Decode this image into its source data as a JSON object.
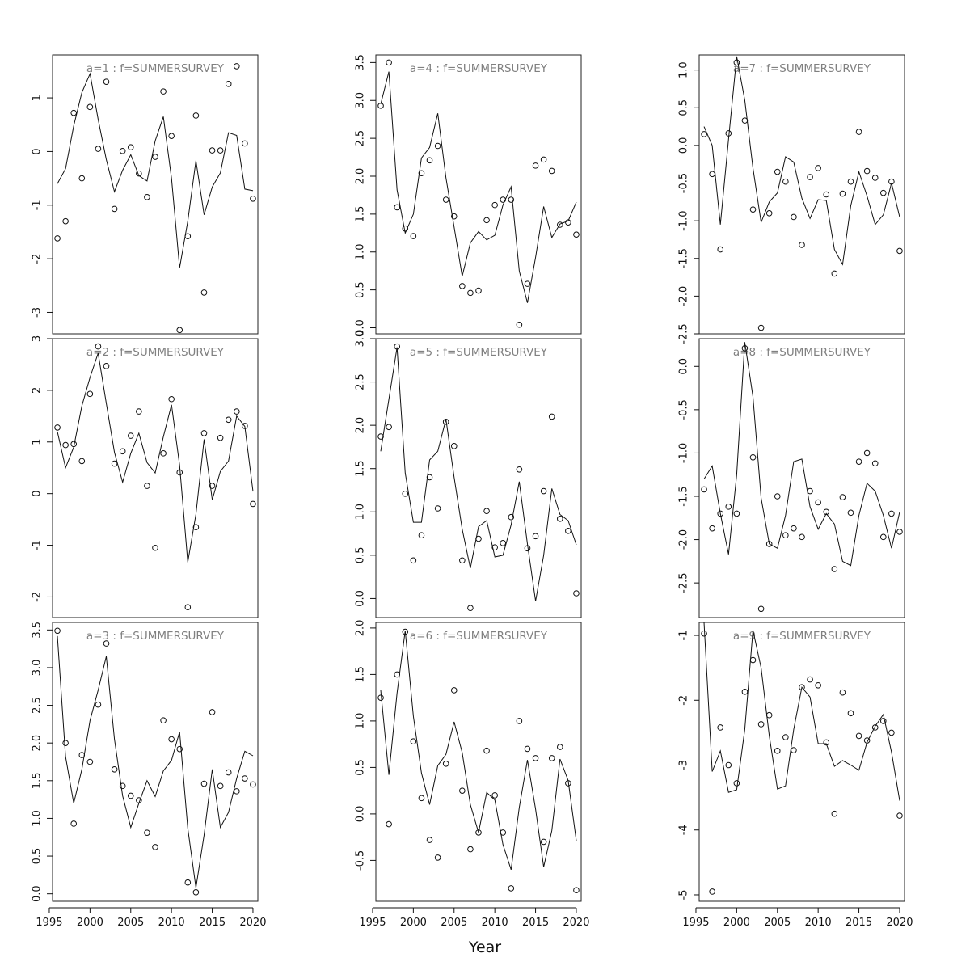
{
  "figure": {
    "xlabel": "Year"
  },
  "chart_data": [
    {
      "type": "line",
      "title": "a=1  :  f=SUMMERSURVEY",
      "xlim": [
        1996,
        2020
      ],
      "ylim": [
        -3.4,
        1.8
      ],
      "x_ticks": [
        1995,
        2000,
        2005,
        2010,
        2015,
        2020
      ],
      "y_ticks": [
        -3,
        -2,
        -1,
        0,
        1
      ],
      "years": [
        1996,
        1997,
        1998,
        1999,
        2000,
        2001,
        2002,
        2003,
        2004,
        2005,
        2006,
        2007,
        2008,
        2009,
        2010,
        2011,
        2012,
        2013,
        2014,
        2015,
        2016,
        2017,
        2018,
        2019,
        2020
      ],
      "series": [
        {
          "kind": "fitted",
          "values": [
            -0.6,
            -0.32,
            0.48,
            1.1,
            1.45,
            0.6,
            -0.15,
            -0.75,
            -0.35,
            -0.06,
            -0.45,
            -0.55,
            0.2,
            0.65,
            -0.5,
            -2.17,
            -1.3,
            -0.17,
            -1.18,
            -0.66,
            -0.4,
            0.35,
            0.3,
            -0.7,
            -0.73
          ]
        },
        {
          "kind": "observed",
          "values": [
            -1.62,
            -1.3,
            0.72,
            -0.5,
            0.83,
            0.05,
            1.3,
            -1.07,
            0.01,
            0.08,
            -0.41,
            -0.85,
            -0.1,
            1.12,
            0.29,
            -3.33,
            -1.58,
            0.67,
            -2.63,
            0.02,
            0.02,
            1.26,
            1.59,
            0.15,
            -0.88
          ]
        }
      ]
    },
    {
      "type": "line",
      "title": "a=2  :  f=SUMMERSURVEY",
      "xlim": [
        1996,
        2020
      ],
      "ylim": [
        -2.4,
        3.0
      ],
      "x_ticks": [
        1995,
        2000,
        2005,
        2010,
        2015,
        2020
      ],
      "y_ticks": [
        -2,
        -1,
        0,
        1,
        2,
        3
      ],
      "years": [
        1996,
        1997,
        1998,
        1999,
        2000,
        2001,
        2002,
        2003,
        2004,
        2005,
        2006,
        2007,
        2008,
        2009,
        2010,
        2011,
        2012,
        2013,
        2014,
        2015,
        2016,
        2017,
        2018,
        2019,
        2020
      ],
      "series": [
        {
          "kind": "fitted",
          "values": [
            1.2,
            0.5,
            0.9,
            1.7,
            2.25,
            2.72,
            1.75,
            0.8,
            0.22,
            0.78,
            1.17,
            0.6,
            0.4,
            1.1,
            1.72,
            0.55,
            -1.33,
            -0.4,
            1.05,
            -0.12,
            0.43,
            0.63,
            1.5,
            1.3,
            0.04
          ]
        },
        {
          "kind": "observed",
          "values": [
            1.28,
            0.94,
            0.96,
            0.63,
            1.93,
            2.85,
            2.47,
            0.58,
            0.82,
            1.12,
            1.59,
            0.15,
            -1.05,
            0.78,
            1.83,
            0.41,
            -2.2,
            -0.65,
            1.17,
            0.15,
            1.08,
            1.43,
            1.59,
            1.31,
            -0.2
          ]
        }
      ]
    },
    {
      "type": "line",
      "title": "a=3  :  f=SUMMERSURVEY",
      "xlim": [
        1996,
        2020
      ],
      "ylim": [
        -0.1,
        3.6
      ],
      "x_ticks": [
        1995,
        2000,
        2005,
        2010,
        2015,
        2020
      ],
      "y_ticks": [
        0.0,
        0.5,
        1.0,
        1.5,
        2.0,
        2.5,
        3.0,
        3.5
      ],
      "years": [
        1996,
        1997,
        1998,
        1999,
        2000,
        2001,
        2002,
        2003,
        2004,
        2005,
        2006,
        2007,
        2008,
        2009,
        2010,
        2011,
        2012,
        2013,
        2014,
        2015,
        2016,
        2017,
        2018,
        2019,
        2020
      ],
      "series": [
        {
          "kind": "fitted",
          "values": [
            3.42,
            1.82,
            1.2,
            1.65,
            2.3,
            2.7,
            3.15,
            2.05,
            1.3,
            0.88,
            1.2,
            1.5,
            1.29,
            1.63,
            1.77,
            2.15,
            0.87,
            0.08,
            0.78,
            1.65,
            0.88,
            1.08,
            1.53,
            1.89,
            1.83
          ]
        },
        {
          "kind": "observed",
          "values": [
            3.49,
            2.0,
            0.93,
            1.84,
            1.75,
            2.51,
            3.32,
            1.65,
            1.43,
            1.3,
            1.24,
            0.81,
            0.62,
            2.3,
            2.05,
            1.92,
            0.15,
            0.02,
            1.46,
            2.41,
            1.43,
            1.61,
            1.36,
            1.53,
            1.45
          ]
        }
      ]
    },
    {
      "type": "line",
      "title": "a=4  :  f=SUMMERSURVEY",
      "xlim": [
        1996,
        2020
      ],
      "ylim": [
        -0.08,
        3.6
      ],
      "x_ticks": [
        1995,
        2000,
        2005,
        2010,
        2015,
        2020
      ],
      "y_ticks": [
        0.0,
        0.5,
        1.0,
        1.5,
        2.0,
        2.5,
        3.0,
        3.5
      ],
      "years": [
        1996,
        1997,
        1998,
        1999,
        2000,
        2001,
        2002,
        2003,
        2004,
        2005,
        2006,
        2007,
        2008,
        2009,
        2010,
        2011,
        2012,
        2013,
        2014,
        2015,
        2016,
        2017,
        2018,
        2019,
        2020
      ],
      "series": [
        {
          "kind": "fitted",
          "values": [
            2.95,
            3.38,
            1.82,
            1.25,
            1.5,
            2.24,
            2.38,
            2.83,
            1.98,
            1.33,
            0.68,
            1.12,
            1.27,
            1.16,
            1.22,
            1.62,
            1.86,
            0.75,
            0.33,
            0.93,
            1.6,
            1.19,
            1.37,
            1.41,
            1.66
          ]
        },
        {
          "kind": "observed",
          "values": [
            2.93,
            3.5,
            1.59,
            1.31,
            1.21,
            2.04,
            2.21,
            2.4,
            1.69,
            1.47,
            0.55,
            0.46,
            0.49,
            1.42,
            1.62,
            1.69,
            1.69,
            0.04,
            0.58,
            2.14,
            2.22,
            2.07,
            1.36,
            1.39,
            1.23
          ]
        }
      ]
    },
    {
      "type": "line",
      "title": "a=5  :  f=SUMMERSURVEY",
      "xlim": [
        1996,
        2020
      ],
      "ylim": [
        -0.22,
        3.0
      ],
      "x_ticks": [
        1995,
        2000,
        2005,
        2010,
        2015,
        2020
      ],
      "y_ticks": [
        0.0,
        0.5,
        1.0,
        1.5,
        2.0,
        2.5,
        3.0
      ],
      "years": [
        1996,
        1997,
        1998,
        1999,
        2000,
        2001,
        2002,
        2003,
        2004,
        2005,
        2006,
        2007,
        2008,
        2009,
        2010,
        2011,
        2012,
        2013,
        2014,
        2015,
        2016,
        2017,
        2018,
        2019,
        2020
      ],
      "series": [
        {
          "kind": "fitted",
          "values": [
            1.7,
            2.3,
            2.9,
            1.45,
            0.88,
            0.88,
            1.6,
            1.7,
            2.07,
            1.4,
            0.8,
            0.35,
            0.83,
            0.9,
            0.48,
            0.5,
            0.85,
            1.35,
            0.63,
            -0.03,
            0.5,
            1.27,
            0.97,
            0.9,
            0.62
          ]
        },
        {
          "kind": "observed",
          "values": [
            1.87,
            1.98,
            2.91,
            1.21,
            0.44,
            0.73,
            1.4,
            1.04,
            2.04,
            1.76,
            0.44,
            -0.11,
            0.69,
            1.01,
            0.59,
            0.64,
            0.94,
            1.49,
            0.58,
            0.72,
            1.24,
            2.1,
            0.92,
            0.78,
            0.06
          ]
        }
      ]
    },
    {
      "type": "line",
      "title": "a=6  :  f=SUMMERSURVEY",
      "xlim": [
        1996,
        2020
      ],
      "ylim": [
        -0.94,
        2.06
      ],
      "x_ticks": [
        1995,
        2000,
        2005,
        2010,
        2015,
        2020
      ],
      "y_ticks": [
        -0.5,
        0.0,
        0.5,
        1.0,
        1.5,
        2.0
      ],
      "years": [
        1996,
        1997,
        1998,
        1999,
        2000,
        2001,
        2002,
        2003,
        2004,
        2005,
        2006,
        2007,
        2008,
        2009,
        2010,
        2011,
        2012,
        2013,
        2014,
        2015,
        2016,
        2017,
        2018,
        2019,
        2020
      ],
      "series": [
        {
          "kind": "fitted",
          "values": [
            1.33,
            0.42,
            1.3,
            1.97,
            1.05,
            0.44,
            0.1,
            0.52,
            0.64,
            0.99,
            0.66,
            0.1,
            -0.2,
            0.23,
            0.15,
            -0.33,
            -0.6,
            0.07,
            0.58,
            0.05,
            -0.57,
            -0.18,
            0.59,
            0.36,
            -0.29
          ]
        },
        {
          "kind": "observed",
          "values": [
            1.25,
            -0.11,
            1.5,
            1.96,
            0.78,
            0.17,
            -0.28,
            -0.47,
            0.54,
            1.33,
            0.25,
            -0.38,
            -0.2,
            0.68,
            0.2,
            -0.2,
            -0.8,
            1.0,
            0.7,
            0.6,
            -0.3,
            0.6,
            0.72,
            0.33,
            -0.82
          ]
        }
      ]
    },
    {
      "type": "line",
      "title": "a=7  :  f=SUMMERSURVEY",
      "xlim": [
        1996,
        2020
      ],
      "ylim": [
        -2.5,
        1.2
      ],
      "x_ticks": [
        1995,
        2000,
        2005,
        2010,
        2015,
        2020
      ],
      "y_ticks": [
        -2.5,
        -2.0,
        -1.5,
        -1.0,
        -0.5,
        0.0,
        0.5,
        1.0
      ],
      "years": [
        1996,
        1997,
        1998,
        1999,
        2000,
        2001,
        2002,
        2003,
        2004,
        2005,
        2006,
        2007,
        2008,
        2009,
        2010,
        2011,
        2012,
        2013,
        2014,
        2015,
        2016,
        2017,
        2018,
        2019,
        2020
      ],
      "series": [
        {
          "kind": "fitted",
          "values": [
            0.25,
            0.0,
            -1.05,
            0.08,
            1.18,
            0.6,
            -0.3,
            -1.02,
            -0.75,
            -0.63,
            -0.15,
            -0.22,
            -0.7,
            -0.97,
            -0.72,
            -0.73,
            -1.38,
            -1.58,
            -0.8,
            -0.35,
            -0.67,
            -1.05,
            -0.92,
            -0.5,
            -0.95
          ]
        },
        {
          "kind": "observed",
          "values": [
            0.15,
            -0.38,
            -1.38,
            0.16,
            1.1,
            0.33,
            -0.85,
            -2.42,
            -0.9,
            -0.35,
            -0.48,
            -0.95,
            -1.32,
            -0.42,
            -0.3,
            -0.65,
            -1.7,
            -0.64,
            -0.48,
            0.18,
            -0.34,
            -0.43,
            -0.63,
            -0.48,
            -1.4
          ]
        }
      ]
    },
    {
      "type": "line",
      "title": "a=8  :  f=SUMMERSURVEY",
      "xlim": [
        1996,
        2020
      ],
      "ylim": [
        -2.9,
        0.32
      ],
      "x_ticks": [
        1995,
        2000,
        2005,
        2010,
        2015,
        2020
      ],
      "y_ticks": [
        -2.5,
        -2.0,
        -1.5,
        -1.0,
        -0.5,
        0.0
      ],
      "years": [
        1996,
        1997,
        1998,
        1999,
        2000,
        2001,
        2002,
        2003,
        2004,
        2005,
        2006,
        2007,
        2008,
        2009,
        2010,
        2011,
        2012,
        2013,
        2014,
        2015,
        2016,
        2017,
        2018,
        2019,
        2020
      ],
      "series": [
        {
          "kind": "fitted",
          "values": [
            -1.3,
            -1.15,
            -1.7,
            -2.17,
            -1.25,
            0.28,
            -0.35,
            -1.52,
            -2.05,
            -2.1,
            -1.72,
            -1.1,
            -1.07,
            -1.62,
            -1.88,
            -1.7,
            -1.82,
            -2.25,
            -2.3,
            -1.72,
            -1.35,
            -1.44,
            -1.72,
            -2.1,
            -1.68
          ]
        },
        {
          "kind": "observed",
          "values": [
            -1.42,
            -1.87,
            -1.7,
            -1.62,
            -1.7,
            0.21,
            -1.05,
            -2.8,
            -2.05,
            -1.5,
            -1.95,
            -1.87,
            -1.97,
            -1.44,
            -1.57,
            -1.68,
            -2.34,
            -1.51,
            -1.69,
            -1.1,
            -1.0,
            -1.12,
            -1.97,
            -1.7,
            -1.91
          ]
        }
      ]
    },
    {
      "type": "line",
      "title": "a=9  :  f=SUMMERSURVEY",
      "xlim": [
        1996,
        2020
      ],
      "ylim": [
        -5.1,
        -0.8
      ],
      "x_ticks": [
        1995,
        2000,
        2005,
        2010,
        2015,
        2020
      ],
      "y_ticks": [
        -5,
        -4,
        -3,
        -2,
        -1
      ],
      "years": [
        1996,
        1997,
        1998,
        1999,
        2000,
        2001,
        2002,
        2003,
        2004,
        2005,
        2006,
        2007,
        2008,
        2009,
        2010,
        2011,
        2012,
        2013,
        2014,
        2015,
        2016,
        2017,
        2018,
        2019,
        2020
      ],
      "series": [
        {
          "kind": "fitted",
          "values": [
            -0.8,
            -3.1,
            -2.78,
            -3.42,
            -3.38,
            -2.45,
            -0.92,
            -1.5,
            -2.55,
            -3.37,
            -3.32,
            -2.45,
            -1.8,
            -1.95,
            -2.67,
            -2.67,
            -3.02,
            -2.93,
            -3.0,
            -3.08,
            -2.65,
            -2.4,
            -2.22,
            -2.8,
            -3.55
          ]
        },
        {
          "kind": "observed",
          "values": [
            -0.97,
            -4.95,
            -2.42,
            -3.0,
            -3.28,
            -1.87,
            -1.38,
            -2.37,
            -2.23,
            -2.78,
            -2.57,
            -2.77,
            -1.8,
            -1.68,
            -1.77,
            -2.65,
            -3.75,
            -1.88,
            -2.2,
            -2.55,
            -2.62,
            -2.42,
            -2.32,
            -2.5,
            -3.78
          ]
        }
      ]
    }
  ]
}
